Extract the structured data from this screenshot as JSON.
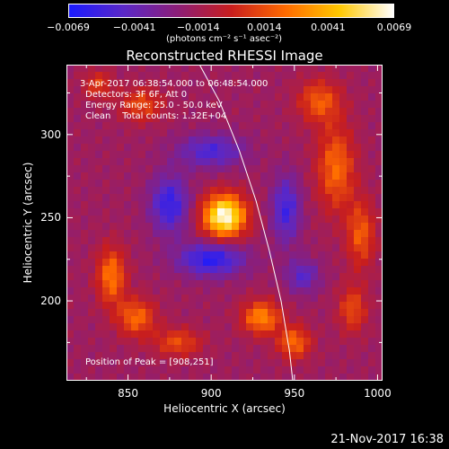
{
  "chart_data": {
    "type": "heatmap",
    "title": "Reconstructed RHESSI Image",
    "xlabel": "Heliocentric X (arcsec)",
    "ylabel": "Heliocentric Y (arcsec)",
    "xlim": [
      813,
      1003
    ],
    "ylim": [
      152,
      342
    ],
    "xticks": [
      "850",
      "900",
      "950",
      "1000"
    ],
    "xtick_values": [
      850,
      900,
      950,
      1000
    ],
    "yticks": [
      "200",
      "250",
      "300"
    ],
    "ytick_values": [
      200,
      250,
      300
    ],
    "colorbar": {
      "ticks": [
        "−0.0069",
        "−0.0041",
        "−0.0014",
        "0.0014",
        "0.0041",
        "0.0069"
      ],
      "tick_values": [
        -0.0069,
        -0.0041,
        -0.0014,
        0.0014,
        0.0041,
        0.0069
      ],
      "unit": "(photons cm⁻² s⁻¹ asec⁻²)",
      "colors": [
        "#1a1aff",
        "#5a28c8",
        "#8c1e78",
        "#c81e1e",
        "#ff6a00",
        "#ffc800",
        "#ffffff"
      ]
    },
    "annotations": {
      "time": "3-Apr-2017 06:38:54.000 to 06:48:54.000",
      "detectors": "Detectors: 3F 6F, Att 0",
      "energy": "Energy Range: 25.0 - 50.0 keV",
      "clean": "Clean    Total counts: 1.32E+04",
      "peak": "Position of Peak = [908,251]"
    },
    "peak": {
      "x": 908,
      "y": 251
    },
    "limb_curve": [
      {
        "x": 893,
        "y": 342
      },
      {
        "x": 905,
        "y": 320
      },
      {
        "x": 917,
        "y": 290
      },
      {
        "x": 927,
        "y": 260
      },
      {
        "x": 935,
        "y": 230
      },
      {
        "x": 942,
        "y": 200
      },
      {
        "x": 947,
        "y": 170
      },
      {
        "x": 949,
        "y": 152
      }
    ],
    "sources": [
      {
        "x": 908,
        "y": 251,
        "sx": 9,
        "sy": 9,
        "amp": 1.0
      },
      {
        "x": 930,
        "y": 190,
        "sx": 8,
        "sy": 7,
        "amp": 0.55
      },
      {
        "x": 950,
        "y": 175,
        "sx": 7,
        "sy": 7,
        "amp": 0.45
      },
      {
        "x": 840,
        "y": 215,
        "sx": 6,
        "sy": 12,
        "amp": 0.5
      },
      {
        "x": 855,
        "y": 190,
        "sx": 8,
        "sy": 8,
        "amp": 0.45
      },
      {
        "x": 880,
        "y": 175,
        "sx": 10,
        "sy": 6,
        "amp": 0.35
      },
      {
        "x": 975,
        "y": 280,
        "sx": 8,
        "sy": 18,
        "amp": 0.45
      },
      {
        "x": 965,
        "y": 320,
        "sx": 9,
        "sy": 9,
        "amp": 0.4
      },
      {
        "x": 990,
        "y": 240,
        "sx": 6,
        "sy": 14,
        "amp": 0.4
      },
      {
        "x": 985,
        "y": 195,
        "sx": 6,
        "sy": 10,
        "amp": 0.35
      },
      {
        "x": 858,
        "y": 318,
        "sx": 9,
        "sy": 7,
        "amp": 0.35
      },
      {
        "x": 832,
        "y": 330,
        "sx": 6,
        "sy": 6,
        "amp": 0.3
      },
      {
        "x": 900,
        "y": 225,
        "sx": 14,
        "sy": 7,
        "amp": -0.55
      },
      {
        "x": 875,
        "y": 258,
        "sx": 8,
        "sy": 12,
        "amp": -0.5
      },
      {
        "x": 945,
        "y": 255,
        "sx": 6,
        "sy": 14,
        "amp": -0.45
      },
      {
        "x": 900,
        "y": 290,
        "sx": 14,
        "sy": 7,
        "amp": -0.4
      },
      {
        "x": 955,
        "y": 215,
        "sx": 7,
        "sy": 7,
        "amp": -0.35
      }
    ]
  },
  "footer": {
    "date": "21-Nov-2017 16:38"
  }
}
